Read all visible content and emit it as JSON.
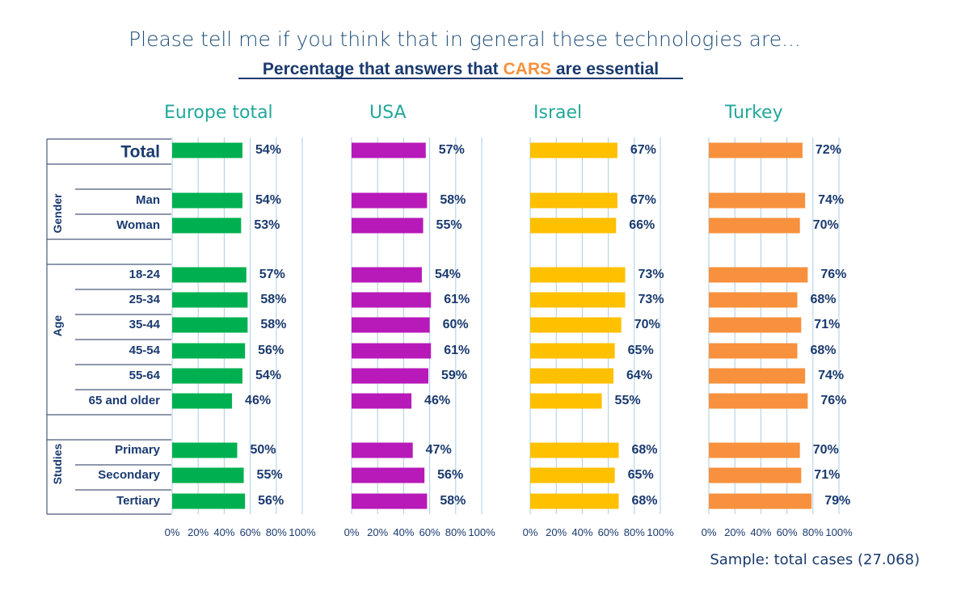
{
  "title": "Please tell me if you think that in general these technologies are...",
  "subtitle": {
    "before": "Percentage that answers that ",
    "highlight": "CARS",
    "after": " are essential"
  },
  "sample_note": "Sample: total cases (27.068)",
  "colors": {
    "Europe total": "#00b050",
    "USA": "#b71ab9",
    "Israel": "#ffc000",
    "Turkey": "#f7913d",
    "highlight": "#f7913d"
  },
  "chart_data": {
    "type": "bar",
    "orientation": "horizontal",
    "xlim": [
      0,
      100
    ],
    "x_ticks": [
      "0%",
      "20%",
      "40%",
      "60%",
      "80%",
      "100%"
    ],
    "groups": [
      {
        "name": "",
        "rows": [
          "Total"
        ]
      },
      {
        "name": "Gender",
        "rows": [
          "Man",
          "Woman"
        ]
      },
      {
        "name": "Age",
        "rows": [
          "18-24",
          "25-34",
          "35-44",
          "45-54",
          "55-64",
          "65 and older"
        ]
      },
      {
        "name": "Studies",
        "rows": [
          "Primary",
          "Secondary",
          "Tertiary"
        ]
      }
    ],
    "categories": [
      "Total",
      "Man",
      "Woman",
      "18-24",
      "25-34",
      "35-44",
      "45-54",
      "55-64",
      "65 and older",
      "Primary",
      "Secondary",
      "Tertiary"
    ],
    "series": [
      {
        "name": "Europe total",
        "values": [
          54,
          54,
          53,
          57,
          58,
          58,
          56,
          54,
          46,
          50,
          55,
          56
        ]
      },
      {
        "name": "USA",
        "values": [
          57,
          58,
          55,
          54,
          61,
          60,
          61,
          59,
          46,
          47,
          56,
          58
        ]
      },
      {
        "name": "Israel",
        "values": [
          67,
          67,
          66,
          73,
          73,
          70,
          65,
          64,
          55,
          68,
          65,
          68
        ]
      },
      {
        "name": "Turkey",
        "values": [
          72,
          74,
          70,
          76,
          68,
          71,
          68,
          74,
          76,
          70,
          71,
          79
        ]
      }
    ]
  }
}
